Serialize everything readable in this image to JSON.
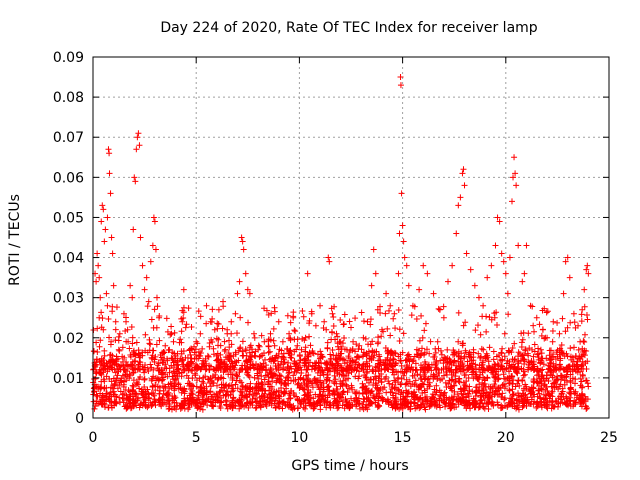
{
  "chart_data": {
    "type": "scatter",
    "title": "Day 224 of 2020, Rate Of TEC Index for receiver lamp",
    "xlabel": "GPS time / hours",
    "ylabel": "ROTI / TECUs",
    "xlim": [
      0,
      25
    ],
    "ylim": [
      0,
      0.09
    ],
    "x_ticks": [
      "0",
      "5",
      "10",
      "15",
      "20",
      "25"
    ],
    "y_ticks": [
      "0",
      "0.01",
      "0.02",
      "0.03",
      "0.04",
      "0.05",
      "0.06",
      "0.07",
      "0.08",
      "0.09"
    ],
    "grid": true,
    "marker": "+",
    "series": [
      {
        "color": "#ff0000",
        "points": [
          [
            0.1,
            0.036
          ],
          [
            0.15,
            0.034
          ],
          [
            0.2,
            0.041
          ],
          [
            0.25,
            0.038
          ],
          [
            0.3,
            0.035
          ],
          [
            0.35,
            0.03
          ],
          [
            0.4,
            0.049
          ],
          [
            0.45,
            0.053
          ],
          [
            0.5,
            0.052
          ],
          [
            0.55,
            0.044
          ],
          [
            0.6,
            0.047
          ],
          [
            0.65,
            0.031
          ],
          [
            0.7,
            0.05
          ],
          [
            0.75,
            0.067
          ],
          [
            0.78,
            0.066
          ],
          [
            0.8,
            0.061
          ],
          [
            0.85,
            0.056
          ],
          [
            0.9,
            0.045
          ],
          [
            0.95,
            0.041
          ],
          [
            1.0,
            0.033
          ],
          [
            0.3,
            0.025
          ],
          [
            0.5,
            0.022
          ],
          [
            0.7,
            0.028
          ],
          [
            1.1,
            0.024
          ],
          [
            1.3,
            0.021
          ],
          [
            1.5,
            0.026
          ],
          [
            1.6,
            0.024
          ],
          [
            1.7,
            0.019
          ],
          [
            1.8,
            0.033
          ],
          [
            1.9,
            0.03
          ],
          [
            1.95,
            0.047
          ],
          [
            2.0,
            0.06
          ],
          [
            2.05,
            0.059
          ],
          [
            2.1,
            0.067
          ],
          [
            2.15,
            0.07
          ],
          [
            2.2,
            0.071
          ],
          [
            2.25,
            0.068
          ],
          [
            2.3,
            0.045
          ],
          [
            2.4,
            0.038
          ],
          [
            2.5,
            0.032
          ],
          [
            2.6,
            0.035
          ],
          [
            2.7,
            0.029
          ],
          [
            2.8,
            0.039
          ],
          [
            2.9,
            0.043
          ],
          [
            2.95,
            0.05
          ],
          [
            3.0,
            0.049
          ],
          [
            3.05,
            0.042
          ],
          [
            3.1,
            0.03
          ],
          [
            3.2,
            0.025
          ],
          [
            3.5,
            0.018
          ],
          [
            3.7,
            0.017
          ],
          [
            3.9,
            0.019
          ],
          [
            4.1,
            0.014
          ],
          [
            4.3,
            0.016
          ],
          [
            4.4,
            0.032
          ],
          [
            4.6,
            0.015
          ],
          [
            4.8,
            0.017
          ],
          [
            5.0,
            0.019
          ],
          [
            5.2,
            0.021
          ],
          [
            5.5,
            0.028
          ],
          [
            5.7,
            0.024
          ],
          [
            5.9,
            0.022
          ],
          [
            6.1,
            0.027
          ],
          [
            6.3,
            0.029
          ],
          [
            6.5,
            0.022
          ],
          [
            6.7,
            0.024
          ],
          [
            6.9,
            0.026
          ],
          [
            7.0,
            0.031
          ],
          [
            7.1,
            0.034
          ],
          [
            7.2,
            0.045
          ],
          [
            7.25,
            0.044
          ],
          [
            7.3,
            0.042
          ],
          [
            7.4,
            0.036
          ],
          [
            7.5,
            0.032
          ],
          [
            7.6,
            0.031
          ],
          [
            7.8,
            0.021
          ],
          [
            8.0,
            0.017
          ],
          [
            8.3,
            0.019
          ],
          [
            8.6,
            0.021
          ],
          [
            8.8,
            0.018
          ],
          [
            9.0,
            0.016
          ],
          [
            9.2,
            0.019
          ],
          [
            9.5,
            0.021
          ],
          [
            9.7,
            0.025
          ],
          [
            9.9,
            0.018
          ],
          [
            10.1,
            0.017
          ],
          [
            10.3,
            0.02
          ],
          [
            10.4,
            0.036
          ],
          [
            10.6,
            0.026
          ],
          [
            10.8,
            0.023
          ],
          [
            11.0,
            0.028
          ],
          [
            11.2,
            0.024
          ],
          [
            11.3,
            0.022
          ],
          [
            11.4,
            0.04
          ],
          [
            11.45,
            0.039
          ],
          [
            11.6,
            0.026
          ],
          [
            11.8,
            0.021
          ],
          [
            12.0,
            0.019
          ],
          [
            12.3,
            0.017
          ],
          [
            12.6,
            0.019
          ],
          [
            12.9,
            0.018
          ],
          [
            13.1,
            0.02
          ],
          [
            13.3,
            0.024
          ],
          [
            13.5,
            0.033
          ],
          [
            13.6,
            0.042
          ],
          [
            13.7,
            0.036
          ],
          [
            13.8,
            0.027
          ],
          [
            14.0,
            0.022
          ],
          [
            14.2,
            0.031
          ],
          [
            14.4,
            0.028
          ],
          [
            14.6,
            0.026
          ],
          [
            14.8,
            0.036
          ],
          [
            14.85,
            0.046
          ],
          [
            14.9,
            0.085
          ],
          [
            14.92,
            0.083
          ],
          [
            14.95,
            0.056
          ],
          [
            15.0,
            0.048
          ],
          [
            15.05,
            0.044
          ],
          [
            15.1,
            0.04
          ],
          [
            15.2,
            0.038
          ],
          [
            15.3,
            0.033
          ],
          [
            15.5,
            0.028
          ],
          [
            15.8,
            0.032
          ],
          [
            16.0,
            0.038
          ],
          [
            16.2,
            0.036
          ],
          [
            16.5,
            0.031
          ],
          [
            16.8,
            0.027
          ],
          [
            17.0,
            0.025
          ],
          [
            17.2,
            0.034
          ],
          [
            17.4,
            0.038
          ],
          [
            17.6,
            0.046
          ],
          [
            17.7,
            0.053
          ],
          [
            17.8,
            0.055
          ],
          [
            17.9,
            0.061
          ],
          [
            17.95,
            0.062
          ],
          [
            18.0,
            0.058
          ],
          [
            18.1,
            0.041
          ],
          [
            18.3,
            0.037
          ],
          [
            18.5,
            0.033
          ],
          [
            18.7,
            0.03
          ],
          [
            18.9,
            0.028
          ],
          [
            19.1,
            0.035
          ],
          [
            19.3,
            0.038
          ],
          [
            19.5,
            0.043
          ],
          [
            19.6,
            0.05
          ],
          [
            19.7,
            0.049
          ],
          [
            19.8,
            0.041
          ],
          [
            19.9,
            0.039
          ],
          [
            20.0,
            0.036
          ],
          [
            20.1,
            0.031
          ],
          [
            20.2,
            0.04
          ],
          [
            20.3,
            0.054
          ],
          [
            20.35,
            0.06
          ],
          [
            20.4,
            0.065
          ],
          [
            20.45,
            0.061
          ],
          [
            20.5,
            0.058
          ],
          [
            20.6,
            0.043
          ],
          [
            20.8,
            0.034
          ],
          [
            20.9,
            0.036
          ],
          [
            21.0,
            0.043
          ],
          [
            21.2,
            0.028
          ],
          [
            21.5,
            0.025
          ],
          [
            21.8,
            0.022
          ],
          [
            22.0,
            0.02
          ],
          [
            22.3,
            0.024
          ],
          [
            22.6,
            0.021
          ],
          [
            22.8,
            0.031
          ],
          [
            22.9,
            0.039
          ],
          [
            23.0,
            0.04
          ],
          [
            23.1,
            0.035
          ],
          [
            23.3,
            0.026
          ],
          [
            23.5,
            0.023
          ],
          [
            23.7,
            0.027
          ],
          [
            23.8,
            0.032
          ],
          [
            23.9,
            0.037
          ],
          [
            23.95,
            0.038
          ],
          [
            24.0,
            0.036
          ],
          [
            23.6,
            0.019
          ],
          [
            21.7,
            0.017
          ],
          [
            16.7,
            0.019
          ]
        ]
      }
    ],
    "dense_band": {
      "x_range": [
        0,
        24
      ],
      "y_low": 0.002,
      "y_high": 0.016
    }
  }
}
